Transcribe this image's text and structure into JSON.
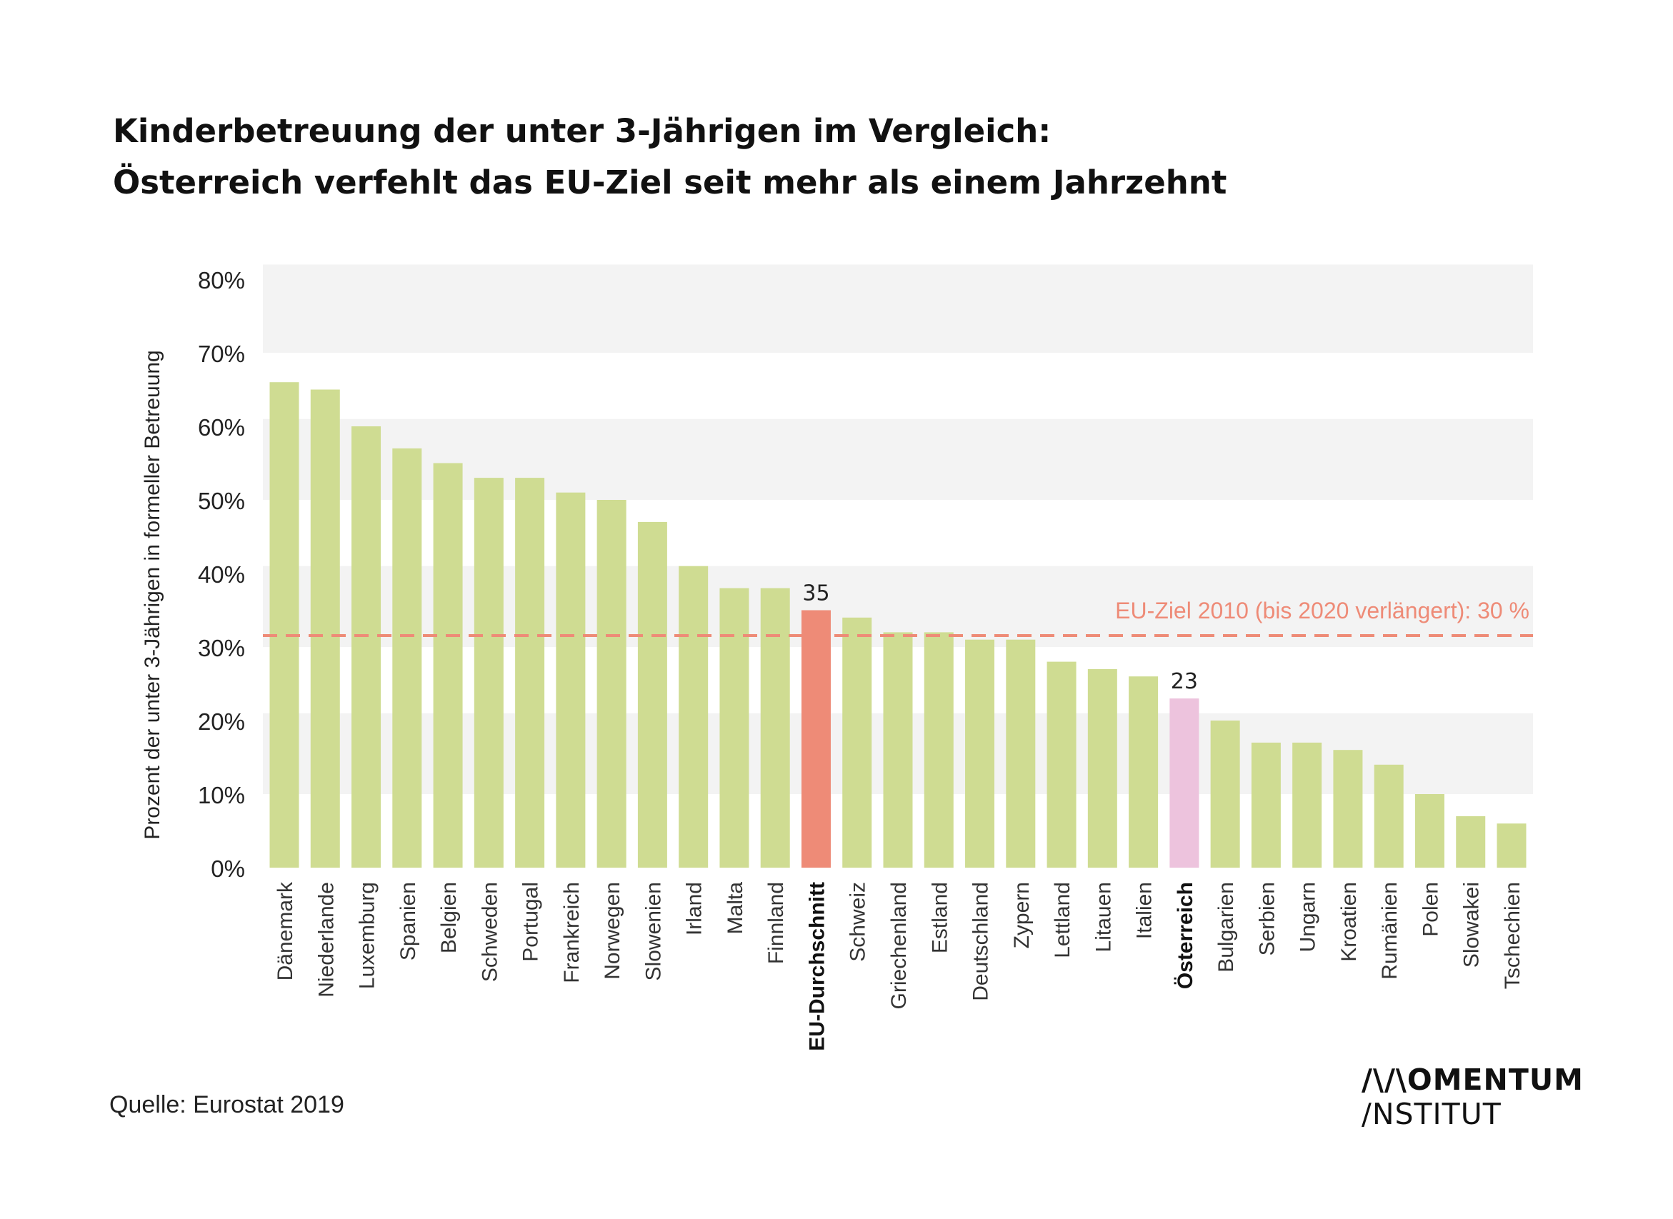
{
  "title": {
    "line1": "Kinderbetreuung der unter 3-Jährigen im Vergleich:",
    "line2": "Österreich verfehlt  das EU-Ziel seit mehr als einem Jahrzehnt"
  },
  "source": "Quelle: Eurostat 2019",
  "logo": {
    "line1": "/\\/\\OMENTUM",
    "line2": "/NSTITUT"
  },
  "colors": {
    "bar": "#cfdc92",
    "eu_average": "#ee8b77",
    "austria": "#edc3dd",
    "target_line": "#ee8b77",
    "band": "#f3f3f3"
  },
  "chart_data": {
    "type": "bar",
    "ylabel": "Prozent der unter 3-Jährigen in formeller Betreuung",
    "ylim": [
      0,
      80
    ],
    "yticks": [
      "0%",
      "10%",
      "20%",
      "30%",
      "40%",
      "50%",
      "60%",
      "70%",
      "80%"
    ],
    "categories": [
      "Dänemark",
      "Niederlande",
      "Luxemburg",
      "Spanien",
      "Belgien",
      "Schweden",
      "Portugal",
      "Frankreich",
      "Norwegen",
      "Slowenien",
      "Irland",
      "Malta",
      "Finnland",
      "EU-Durchschnitt",
      "Schweiz",
      "Griechenland",
      "Estland",
      "Deutschland",
      "Zypern",
      "Lettland",
      "Litauen",
      "Italien",
      "Österreich",
      "Bulgarien",
      "Serbien",
      "Ungarn",
      "Kroatien",
      "Rumänien",
      "Polen",
      "Slowakei",
      "Tschechien"
    ],
    "values": [
      66,
      65,
      60,
      57,
      55,
      53,
      53,
      51,
      50,
      47,
      41,
      38,
      38,
      35,
      34,
      32,
      32,
      31,
      31,
      28,
      27,
      26,
      23,
      20,
      17,
      17,
      16,
      14,
      10,
      7,
      6
    ],
    "highlight": {
      "EU-Durchschnitt": {
        "label": "35",
        "color": "#ee8b77",
        "bold": true
      },
      "Österreich": {
        "label": "23",
        "color": "#edc3dd",
        "bold": true
      }
    },
    "target": {
      "value": 30,
      "label": "EU-Ziel 2010 (bis 2020 verlängert): 30 %"
    },
    "grid_bands": true,
    "legend": "none"
  }
}
